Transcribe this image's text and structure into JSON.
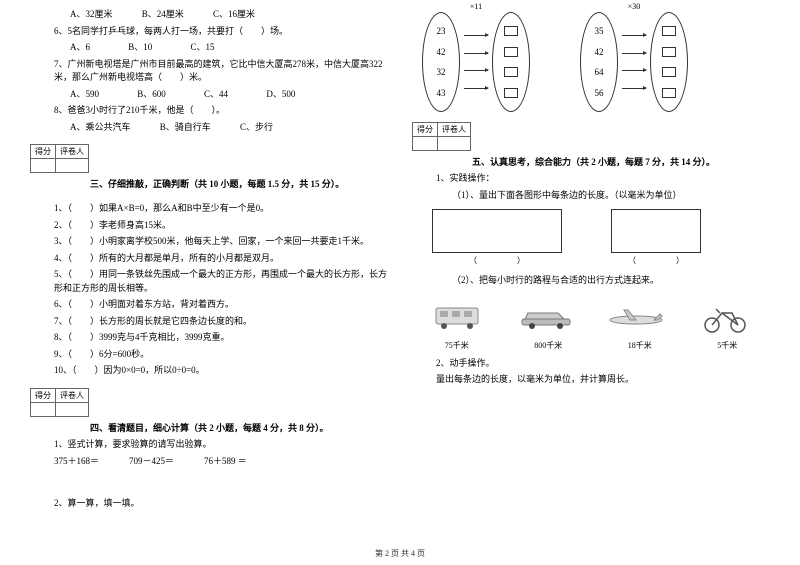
{
  "q5": {
    "opts": {
      "a": "A、32厘米",
      "b": "B、24厘米",
      "c": "C、16厘米"
    }
  },
  "q6": {
    "text": "6、5名同学打乒乓球，每两人打一场，共要打（　　）场。",
    "opts": {
      "a": "A、6",
      "b": "B、10",
      "c": "C、15"
    }
  },
  "q7": {
    "text": "7、广州新电视塔是广州市目前最高的建筑，它比中信大厦高278米，中信大厦高322米，那么广州新电视塔高（　　）米。",
    "opts": {
      "a": "A、590",
      "b": "B、600",
      "c": "C、44",
      "d": "D、500"
    }
  },
  "q8": {
    "text": "8、爸爸3小时行了210千米，他是（　　）。",
    "opts": {
      "a": "A、乘公共汽车",
      "b": "B、骑自行车",
      "c": "C、步行"
    }
  },
  "scorebox": {
    "score": "得分",
    "reviewer": "评卷人"
  },
  "section3": {
    "title": "三、仔细推敲，正确判断（共 10 小题，每题 1.5 分，共 15 分）。",
    "items": [
      "1、（　　）如果A×B=0，那么A和B中至少有一个是0。",
      "2、（　　）李老师身高15米。",
      "3、（　　）小明家离学校500米，他每天上学、回家，一个来回一共要走1千米。",
      "4、（　　）所有的大月都是单月，所有的小月都是双月。",
      "5、（　　）用同一条铁丝先围成一个最大的正方形，再围成一个最大的长方形，长方形和正方形的周长相等。",
      "6、（　　）小明面对着东方站，背对着西方。",
      "7、（　　）长方形的周长就是它四条边长度的和。",
      "8、（　　）3999克与4千克相比，3999克重。",
      "9、（　　）6分=600秒。",
      "10、（　　）因为0×0=0，所以0÷0=0。"
    ]
  },
  "section4": {
    "title": "四、看清题目，细心计算（共 2 小题，每题 4 分，共 8 分）。",
    "sub1": "1、竖式计算，要求验算的请写出验算。",
    "calcs": {
      "a": "375＋168＝",
      "b": "709－425＝",
      "c": "76＋589 ＝"
    },
    "sub2": "2、算一算，填一填。"
  },
  "ovals": {
    "left": {
      "label": "×11",
      "nums": [
        "23",
        "42",
        "32",
        "43"
      ]
    },
    "right": {
      "label": "×30",
      "nums": [
        "35",
        "42",
        "64",
        "56"
      ]
    }
  },
  "section5": {
    "title": "五、认真思考，综合能力（共 2 小题，每题 7 分，共 14 分）。",
    "sub1": "1、实践操作：",
    "sub1a": "（1）、量出下面各图形中每条边的长度。（以毫米为单位）",
    "paren": "（　　　　　）",
    "sub1b": "（2）、把每小时行的路程与合适的出行方式连起来。",
    "distances": {
      "a": "75千米",
      "b": "800千米",
      "c": "18千米",
      "d": "5千米"
    },
    "sub2": "2、动手操作。",
    "sub2a": "量出每条边的长度，以毫米为单位，并计算周长。"
  },
  "footer": "第 2 页 共 4 页"
}
